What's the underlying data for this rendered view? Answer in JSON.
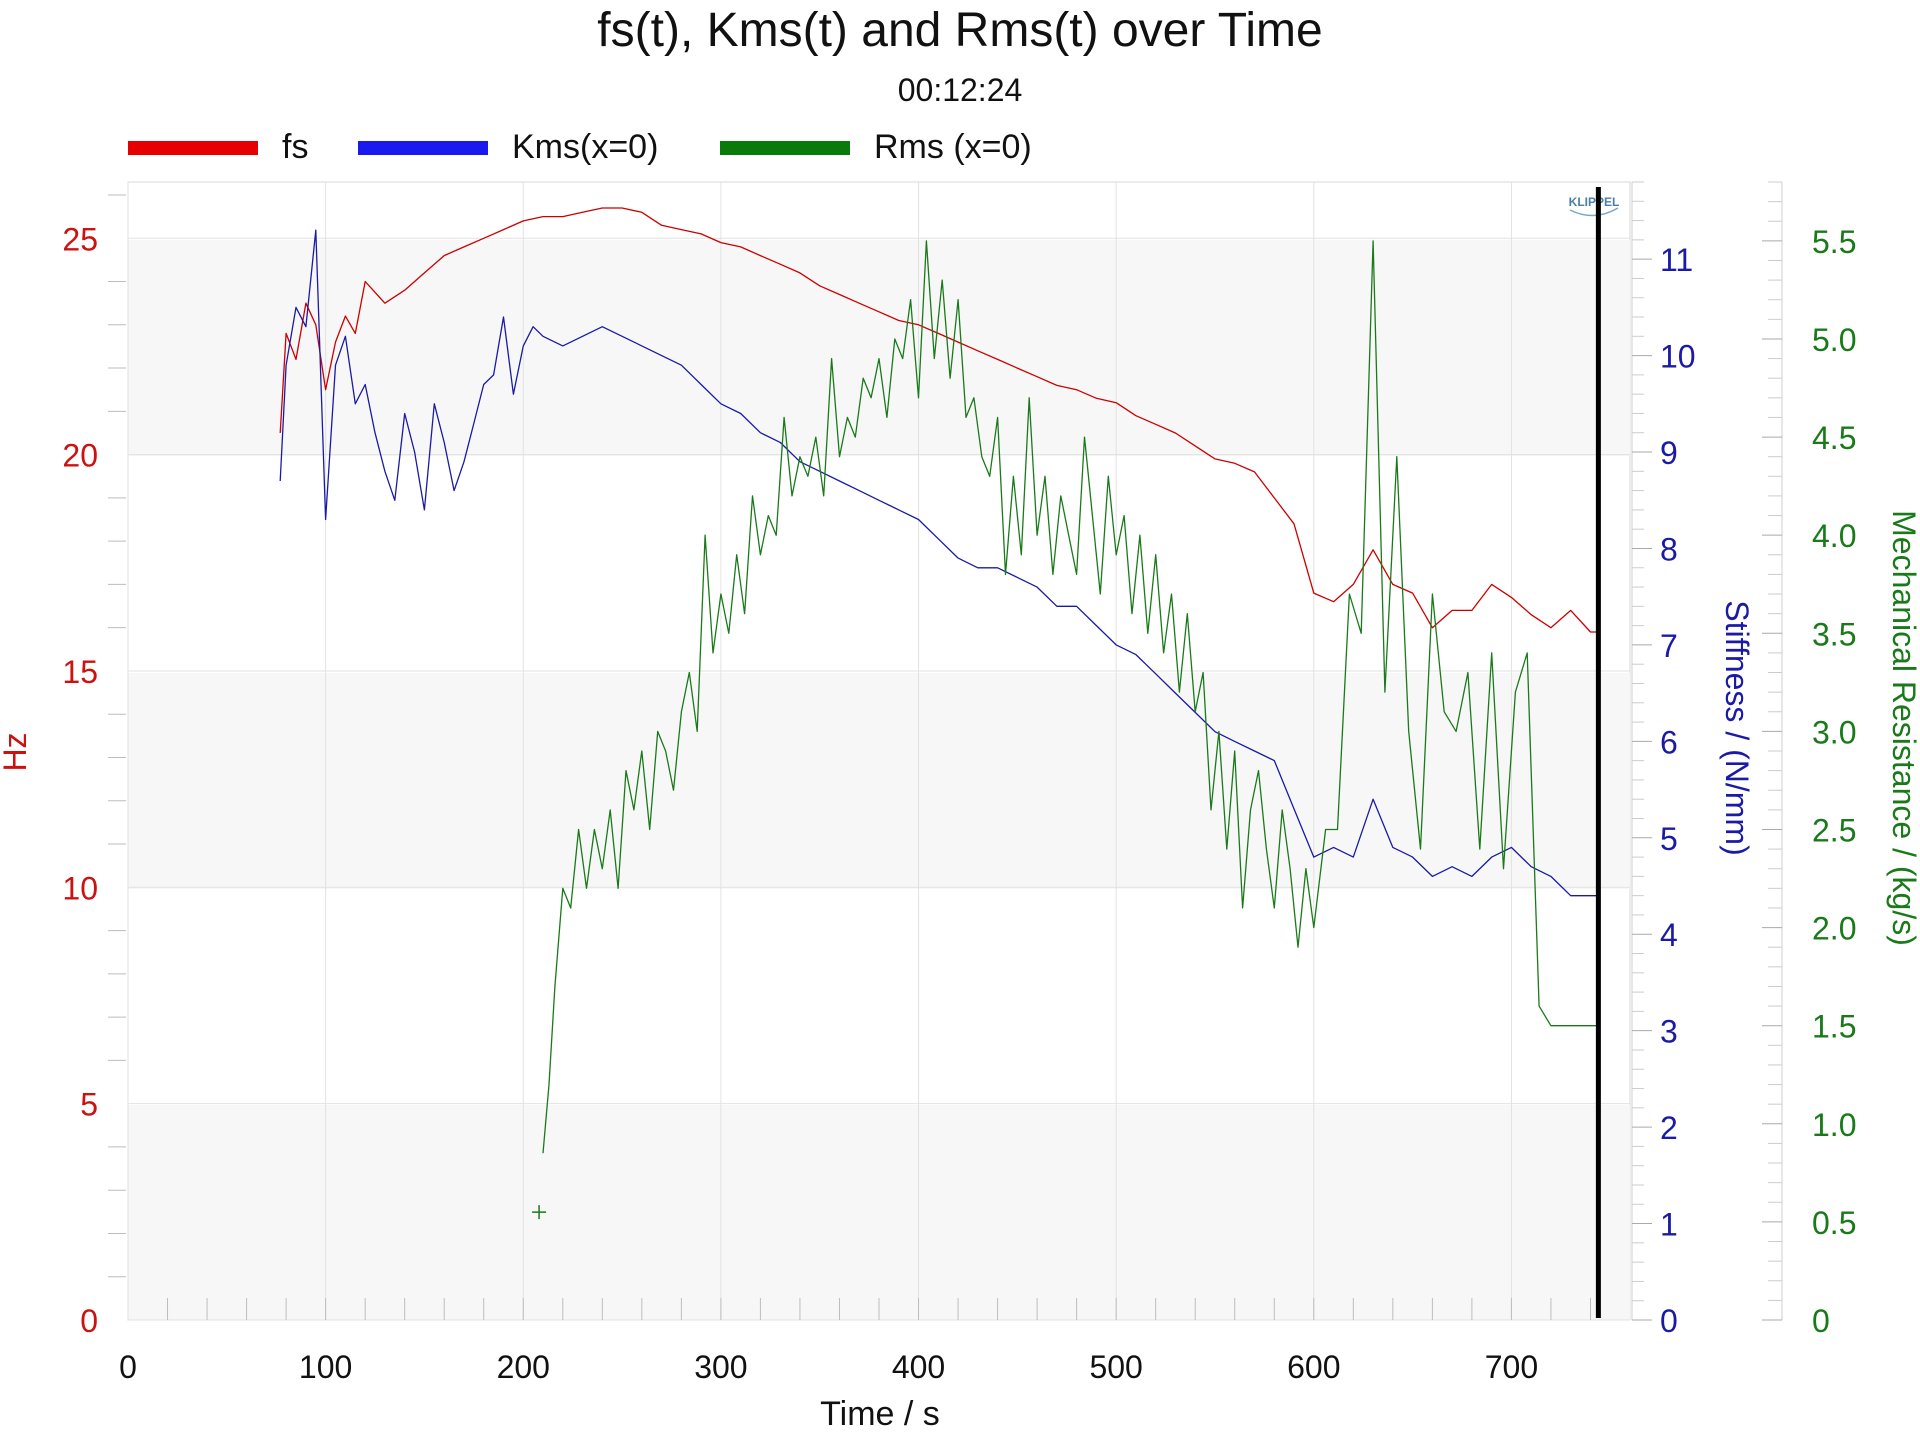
{
  "chart_data": {
    "type": "line",
    "title": "fs(t), Kms(t) and Rms(t) over Time",
    "subtitle": "00:12:24",
    "logo": "KLIPPEL",
    "xlabel": "Time / s",
    "xlim": [
      0,
      760
    ],
    "xticks": [
      0,
      100,
      200,
      300,
      400,
      500,
      600,
      700
    ],
    "cursor_x": 744,
    "grid": true,
    "legend_position": "top-left",
    "axes": {
      "left": {
        "label": "Hz",
        "color": "#cc1111",
        "ylim": [
          0,
          26.3
        ],
        "ticks": [
          0,
          5,
          10,
          15,
          20,
          25
        ]
      },
      "right1": {
        "label": "Stiffness / (N/mm)",
        "color": "#1a1aa6",
        "ylim": [
          0,
          11.8
        ],
        "ticks": [
          0,
          1,
          2,
          3,
          4,
          5,
          6,
          7,
          8,
          9,
          10,
          11
        ]
      },
      "right2": {
        "label": "Mechanical Resistance / (kg/s)",
        "color": "#1a7a1a",
        "ylim": [
          0,
          5.8
        ],
        "ticks": [
          "0",
          "0.5",
          "1.0",
          "1.5",
          "2.0",
          "2.5",
          "3.0",
          "3.5",
          "4.0",
          "4.5",
          "5.0",
          "5.5"
        ]
      }
    },
    "series": [
      {
        "name": "fs",
        "axis": "left",
        "color": "#cc0000",
        "legend_color": "#e60000",
        "x": [
          77,
          80,
          85,
          90,
          95,
          100,
          105,
          110,
          115,
          120,
          130,
          140,
          150,
          160,
          170,
          180,
          190,
          200,
          210,
          220,
          230,
          240,
          250,
          260,
          270,
          280,
          290,
          300,
          310,
          320,
          330,
          340,
          350,
          360,
          370,
          380,
          390,
          400,
          410,
          420,
          430,
          440,
          450,
          460,
          470,
          480,
          490,
          500,
          510,
          520,
          530,
          540,
          550,
          560,
          570,
          580,
          590,
          600,
          610,
          620,
          630,
          640,
          650,
          660,
          670,
          680,
          690,
          700,
          710,
          720,
          730,
          740,
          744
        ],
        "y": [
          20.5,
          22.8,
          22.2,
          23.5,
          23.0,
          21.5,
          22.6,
          23.2,
          22.8,
          24.0,
          23.5,
          23.8,
          24.2,
          24.6,
          24.8,
          25.0,
          25.2,
          25.4,
          25.5,
          25.5,
          25.6,
          25.7,
          25.7,
          25.6,
          25.3,
          25.2,
          25.1,
          24.9,
          24.8,
          24.6,
          24.4,
          24.2,
          23.9,
          23.7,
          23.5,
          23.3,
          23.1,
          23.0,
          22.8,
          22.6,
          22.4,
          22.2,
          22.0,
          21.8,
          21.6,
          21.5,
          21.3,
          21.2,
          20.9,
          20.7,
          20.5,
          20.2,
          19.9,
          19.8,
          19.6,
          19.0,
          18.4,
          16.8,
          16.6,
          17.0,
          17.8,
          17.0,
          16.8,
          16.0,
          16.4,
          16.4,
          17.0,
          16.7,
          16.3,
          16.0,
          16.4,
          15.9,
          15.9
        ]
      },
      {
        "name": "Kms(x=0)",
        "axis": "right1",
        "color": "#1a1aa6",
        "legend_color": "#1a1aee",
        "x": [
          77,
          80,
          85,
          90,
          95,
          100,
          105,
          110,
          115,
          120,
          125,
          130,
          135,
          140,
          145,
          150,
          155,
          160,
          165,
          170,
          175,
          180,
          185,
          190,
          195,
          200,
          205,
          210,
          220,
          230,
          240,
          250,
          260,
          270,
          280,
          290,
          300,
          310,
          320,
          330,
          340,
          350,
          360,
          370,
          380,
          390,
          400,
          410,
          420,
          430,
          440,
          450,
          460,
          470,
          480,
          490,
          500,
          510,
          520,
          530,
          540,
          550,
          560,
          570,
          580,
          590,
          600,
          610,
          620,
          630,
          640,
          650,
          660,
          670,
          680,
          690,
          700,
          710,
          720,
          730,
          740,
          744
        ],
        "y": [
          8.7,
          9.9,
          10.5,
          10.3,
          11.3,
          8.3,
          9.9,
          10.2,
          9.5,
          9.7,
          9.2,
          8.8,
          8.5,
          9.4,
          9.0,
          8.4,
          9.5,
          9.1,
          8.6,
          8.9,
          9.3,
          9.7,
          9.8,
          10.4,
          9.6,
          10.1,
          10.3,
          10.2,
          10.1,
          10.2,
          10.3,
          10.2,
          10.1,
          10.0,
          9.9,
          9.7,
          9.5,
          9.4,
          9.2,
          9.1,
          8.9,
          8.8,
          8.7,
          8.6,
          8.5,
          8.4,
          8.3,
          8.1,
          7.9,
          7.8,
          7.8,
          7.7,
          7.6,
          7.4,
          7.4,
          7.2,
          7.0,
          6.9,
          6.7,
          6.5,
          6.3,
          6.1,
          6.0,
          5.9,
          5.8,
          5.3,
          4.8,
          4.9,
          4.8,
          5.4,
          4.9,
          4.8,
          4.6,
          4.7,
          4.6,
          4.8,
          4.9,
          4.7,
          4.6,
          4.4,
          4.4,
          4.4
        ]
      },
      {
        "name": "Rms (x=0)",
        "axis": "right2",
        "color": "#1a7a1a",
        "legend_color": "#0a7a0a",
        "x": [
          210,
          213,
          216,
          220,
          224,
          228,
          232,
          236,
          240,
          244,
          248,
          252,
          256,
          260,
          264,
          268,
          272,
          276,
          280,
          284,
          288,
          292,
          296,
          300,
          304,
          308,
          312,
          316,
          320,
          324,
          328,
          332,
          336,
          340,
          344,
          348,
          352,
          356,
          360,
          364,
          368,
          372,
          376,
          380,
          384,
          388,
          392,
          396,
          400,
          404,
          408,
          412,
          416,
          420,
          424,
          428,
          432,
          436,
          440,
          444,
          448,
          452,
          456,
          460,
          464,
          468,
          472,
          476,
          480,
          484,
          488,
          492,
          496,
          500,
          504,
          508,
          512,
          516,
          520,
          524,
          528,
          532,
          536,
          540,
          544,
          548,
          552,
          556,
          560,
          564,
          568,
          572,
          576,
          580,
          584,
          588,
          592,
          596,
          600,
          606,
          612,
          618,
          624,
          630,
          636,
          642,
          648,
          654,
          660,
          666,
          672,
          678,
          684,
          690,
          696,
          702,
          708,
          714,
          720,
          726,
          732,
          738,
          744
        ],
        "y": [
          0.85,
          1.2,
          1.7,
          2.2,
          2.1,
          2.5,
          2.2,
          2.5,
          2.3,
          2.6,
          2.2,
          2.8,
          2.6,
          2.9,
          2.5,
          3.0,
          2.9,
          2.7,
          3.1,
          3.3,
          3.0,
          4.0,
          3.4,
          3.7,
          3.5,
          3.9,
          3.6,
          4.2,
          3.9,
          4.1,
          4.0,
          4.6,
          4.2,
          4.4,
          4.3,
          4.5,
          4.2,
          4.9,
          4.4,
          4.6,
          4.5,
          4.8,
          4.7,
          4.9,
          4.6,
          5.0,
          4.9,
          5.2,
          4.7,
          5.5,
          4.9,
          5.3,
          4.8,
          5.2,
          4.6,
          4.7,
          4.4,
          4.3,
          4.6,
          3.8,
          4.3,
          3.9,
          4.7,
          4.0,
          4.3,
          3.8,
          4.2,
          4.0,
          3.8,
          4.5,
          4.1,
          3.7,
          4.3,
          3.9,
          4.1,
          3.6,
          4.0,
          3.5,
          3.9,
          3.4,
          3.7,
          3.2,
          3.6,
          3.1,
          3.3,
          2.6,
          3.0,
          2.4,
          2.9,
          2.1,
          2.6,
          2.8,
          2.4,
          2.1,
          2.6,
          2.3,
          1.9,
          2.3,
          2.0,
          2.5,
          2.5,
          3.7,
          3.5,
          5.5,
          3.2,
          4.4,
          3.0,
          2.4,
          3.7,
          3.1,
          3.0,
          3.3,
          2.4,
          3.4,
          2.3,
          3.2,
          3.4,
          1.6,
          1.5,
          1.5,
          1.5,
          1.5,
          1.5
        ]
      }
    ],
    "markers": [
      {
        "type": "plus",
        "x": 208,
        "y": 0.55,
        "axis": "right2",
        "color": "#1a7a1a"
      }
    ]
  }
}
